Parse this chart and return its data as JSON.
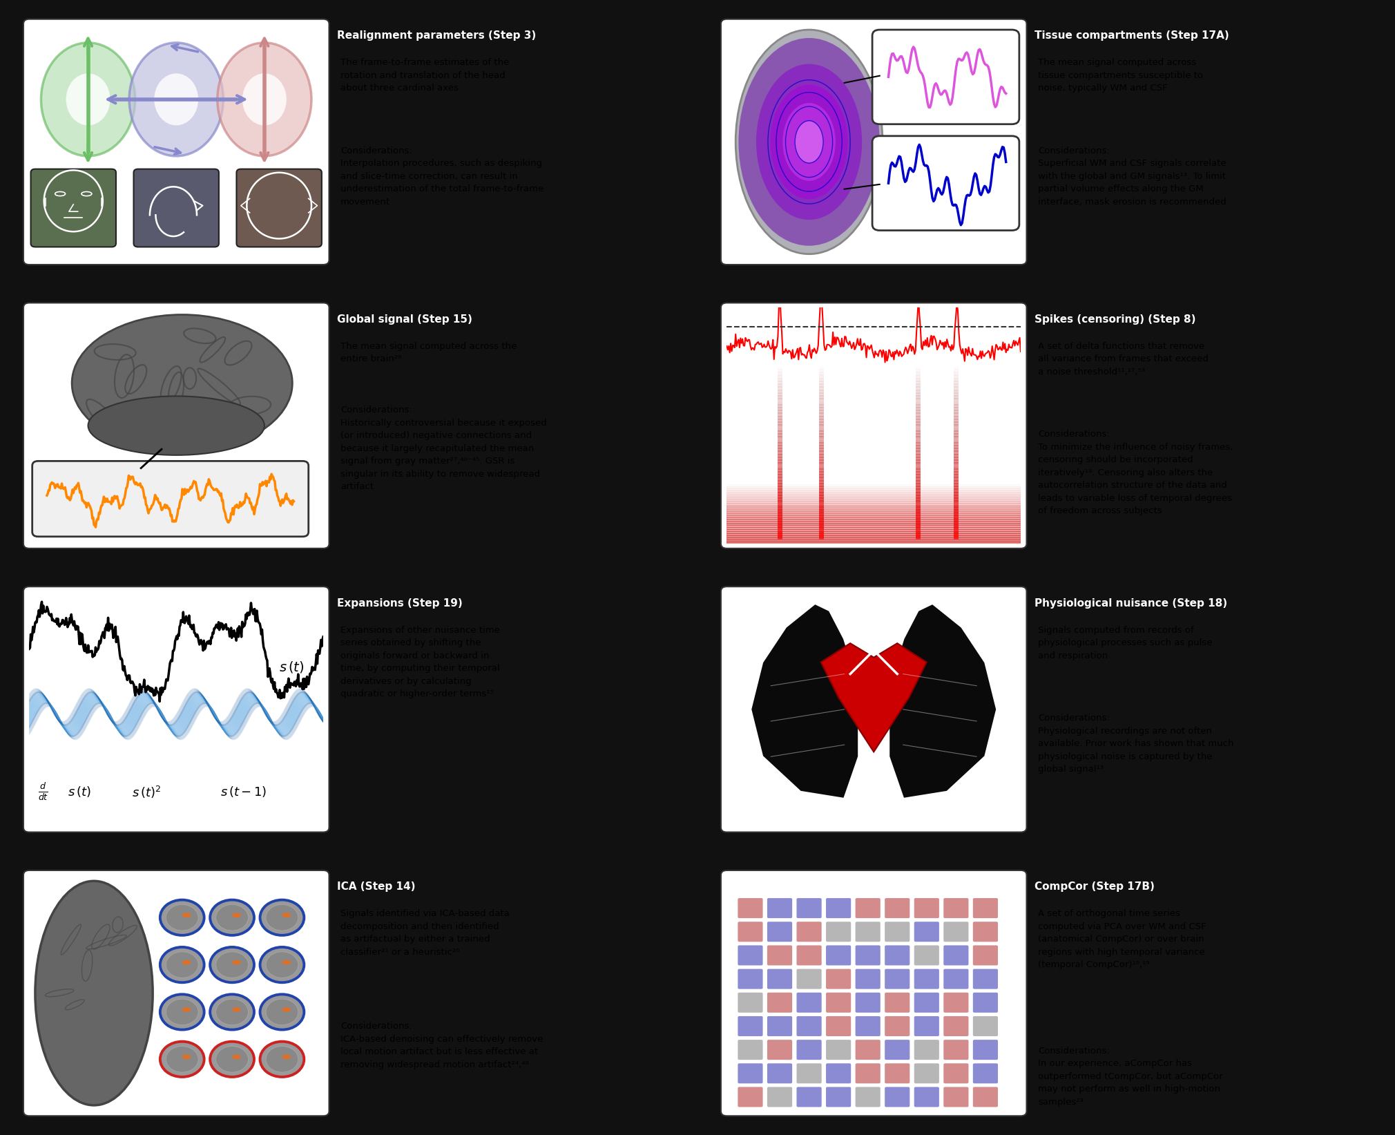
{
  "panels": [
    {
      "id": "realignment",
      "title": "Realignment parameters (Step 3)",
      "body": "The frame-to-frame estimates of the\nrotation and translation of the head\nabout three cardinal axes",
      "considerations": "Considerations:\nInterpolation procedures, such as despiking\nand slice-time correction, can result in\nunderestimation of the total frame-to-frame\nmovement",
      "row": 0,
      "col": 0
    },
    {
      "id": "tissue",
      "title": "Tissue compartments (Step 17A)",
      "body": "The mean signal computed across\ntissue compartments susceptible to\nnoise, typically WM and CSF",
      "considerations": "Considerations:\nSuperficial WM and CSF signals correlate\nwith the global and GM signals¹³. To limit\npartial volume effects along the GM\ninterface, mask erosion is recommended",
      "row": 0,
      "col": 1
    },
    {
      "id": "global",
      "title": "Global signal (Step 15)",
      "body": "The mean signal computed across the\nentire brain²⁶",
      "considerations": "Considerations:\nHistorically controversial because it exposed\n(or introduced) negative connections and\nbecause it largely recapitulated the mean\nsignal from gray matter²⁷,⁴⁰⁻⁴⁵. GSR is\nsingular in its ability to remove widespread\nartifact",
      "row": 1,
      "col": 0
    },
    {
      "id": "spikes",
      "title": "Spikes (censoring) (Step 8)",
      "body": "A set of delta functions that remove\nall variance from frames that exceed\na noise threshold¹¹,¹⁷,⁵³",
      "considerations": "Considerations:\nTo minimize the influence of noisy frames,\ncensoring should be incorporated\niteratively¹⁸. Censoring also alters the\nautocorrelation structure of the data and\nleads to variable loss of temporal degrees\nof freedom across subjects",
      "row": 1,
      "col": 1
    },
    {
      "id": "expansions",
      "title": "Expansions (Step 19)",
      "body": "Expansions of other nuisance time\nseries obtained by shifting the\noriginals forward or backward in\ntime, by computing their temporal\nderivatives or by calculating\nquadratic or higher-order terms¹⁵",
      "considerations": "",
      "row": 2,
      "col": 0
    },
    {
      "id": "physiological",
      "title": "Physiological nuisance (Step 18)",
      "body": "Signals computed from records of\nphysiological processes such as pulse\nand respiration",
      "considerations": "Considerations:\nPhysiological recordings are not often\navailable. Prior work has shown that much\nphysiological noise is captured by the\nglobal signal¹³",
      "row": 2,
      "col": 1
    },
    {
      "id": "ica",
      "title": "ICA (Step 14)",
      "body": "Signals identified via ICA-based data\ndecomposition and then identified\nas artifactual by either a trained\nclassifier²¹ or a heuristic²⁰",
      "considerations": "Considerations:\nICA-based denoising can effectively remove\nlocal motion artifact but is less effective at\nremoving widespread motion artifact²⁴,⁴⁸",
      "row": 3,
      "col": 0
    },
    {
      "id": "compcor",
      "title": "CompCor (Step 17B)",
      "body": "A set of orthogonal time series\ncomputed via PCA over WM and CSF\n(anatomical CompCor) or over brain\nregions with high temporal variance\n(temporal CompCor)¹⁶,¹⁹",
      "considerations": "Considerations:\nIn our experience, aCompCor has\noutperformed tCompCor, but aCompCor\nmay not perform as well in high-motion\nsamples²³",
      "row": 3,
      "col": 1
    }
  ],
  "bg_color": "#111111",
  "panel_bg": "#e4e4e4",
  "title_bg": "#000000",
  "title_color": "#ffffff",
  "body_color": "#000000"
}
